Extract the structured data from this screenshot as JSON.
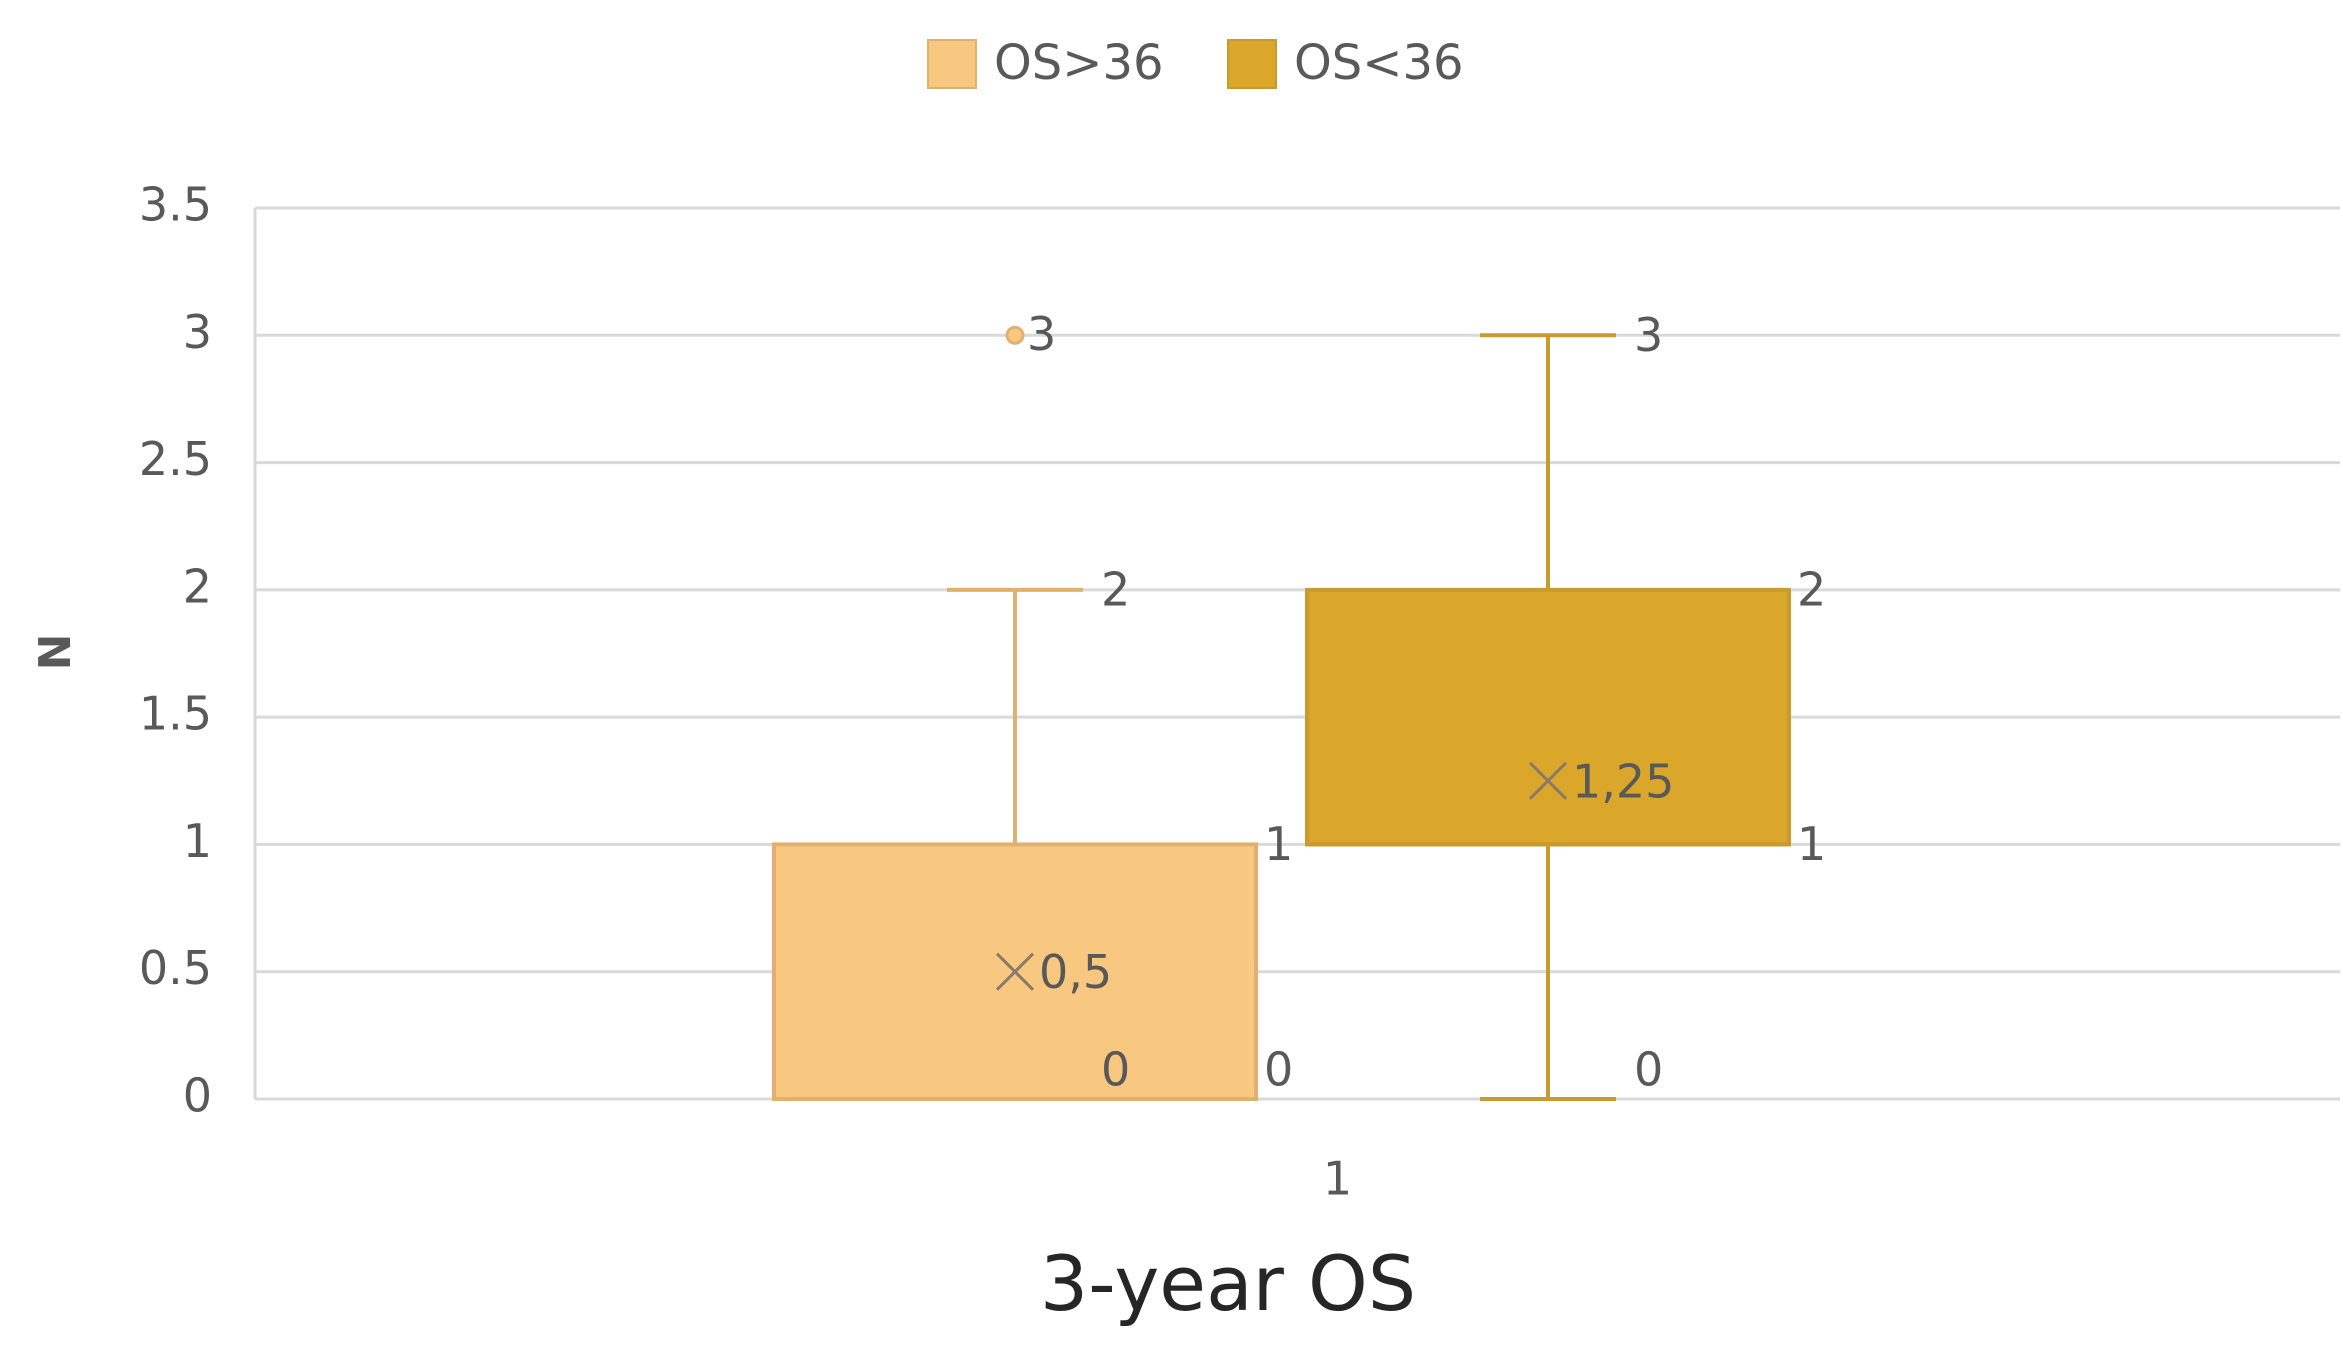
{
  "chart_data": {
    "type": "box",
    "x_label": "3-year OS",
    "y_label": "N",
    "categories": [
      "1"
    ],
    "ylim": [
      0,
      3.5
    ],
    "yticks": [
      0,
      0.5,
      1,
      1.5,
      2,
      2.5,
      3,
      3.5
    ],
    "grid": true,
    "legend": "top",
    "series": [
      {
        "name": "OS>36",
        "color": "#f9c880",
        "line_color": "#e0b070",
        "min": 0,
        "q1": 0,
        "median": 0,
        "q3": 1,
        "max": 2,
        "mean": 0.5,
        "mean_label": "0,5",
        "outliers": [
          3
        ]
      },
      {
        "name": "OS<36",
        "color": "#dba72b",
        "line_color": "#c99a30",
        "min": 0,
        "q1": 1,
        "median": 1,
        "q3": 2,
        "max": 3,
        "mean": 1.25,
        "mean_label": "1,25",
        "outliers": []
      }
    ]
  }
}
